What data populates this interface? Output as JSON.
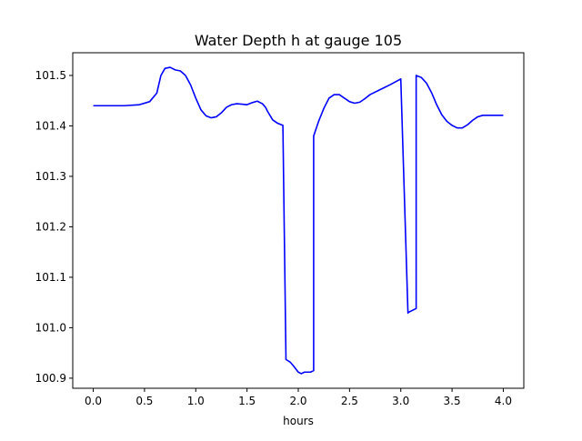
{
  "chart_data": {
    "type": "line",
    "title": "Water Depth h at gauge 105",
    "xlabel": "hours",
    "ylabel": "",
    "xlim": [
      -0.2,
      4.2
    ],
    "ylim": [
      100.88,
      101.545
    ],
    "x_ticks": [
      0.0,
      0.5,
      1.0,
      1.5,
      2.0,
      2.5,
      3.0,
      3.5,
      4.0
    ],
    "x_tick_labels": [
      "0.0",
      "0.5",
      "1.0",
      "1.5",
      "2.0",
      "2.5",
      "3.0",
      "3.5",
      "4.0"
    ],
    "y_ticks": [
      100.9,
      101.0,
      101.1,
      101.2,
      101.3,
      101.4,
      101.5
    ],
    "y_tick_labels": [
      "100.9",
      "101.0",
      "101.1",
      "101.2",
      "101.3",
      "101.4",
      "101.5"
    ],
    "grid": false,
    "legend": "none",
    "series": [
      {
        "color": "#0000ff",
        "x": [
          0.0,
          0.3,
          0.45,
          0.55,
          0.62,
          0.66,
          0.7,
          0.75,
          0.8,
          0.85,
          0.9,
          0.95,
          1.0,
          1.05,
          1.1,
          1.15,
          1.2,
          1.25,
          1.3,
          1.35,
          1.4,
          1.45,
          1.5,
          1.55,
          1.6,
          1.65,
          1.68,
          1.7,
          1.75,
          1.8,
          1.85,
          1.88,
          1.88,
          1.92,
          1.95,
          2.0,
          2.03,
          2.06,
          2.1,
          2.12,
          2.15,
          2.15,
          2.2,
          2.25,
          2.3,
          2.35,
          2.4,
          2.45,
          2.5,
          2.55,
          2.6,
          2.65,
          2.7,
          2.8,
          2.9,
          3.0,
          3.07,
          3.07,
          3.15,
          3.15,
          3.2,
          3.25,
          3.3,
          3.35,
          3.4,
          3.45,
          3.5,
          3.55,
          3.6,
          3.65,
          3.7,
          3.75,
          3.8,
          3.85,
          3.9,
          4.0
        ],
        "y": [
          101.44,
          101.44,
          101.442,
          101.448,
          101.465,
          101.5,
          101.514,
          101.516,
          101.511,
          101.509,
          101.5,
          101.481,
          101.455,
          101.432,
          101.42,
          101.416,
          101.418,
          101.426,
          101.437,
          101.442,
          101.444,
          101.443,
          101.442,
          101.446,
          101.449,
          101.444,
          101.437,
          101.429,
          101.412,
          101.405,
          101.401,
          100.937,
          100.937,
          100.932,
          100.925,
          100.912,
          100.909,
          100.912,
          100.912,
          100.912,
          100.915,
          101.38,
          101.41,
          101.435,
          101.455,
          101.462,
          101.462,
          101.455,
          101.448,
          101.445,
          101.447,
          101.454,
          101.462,
          101.472,
          101.482,
          101.493,
          101.029,
          101.03,
          101.038,
          101.5,
          101.496,
          101.485,
          101.466,
          101.442,
          101.422,
          101.409,
          101.401,
          101.396,
          101.396,
          101.402,
          101.411,
          101.418,
          101.421,
          101.421,
          101.421,
          101.421
        ]
      }
    ]
  }
}
